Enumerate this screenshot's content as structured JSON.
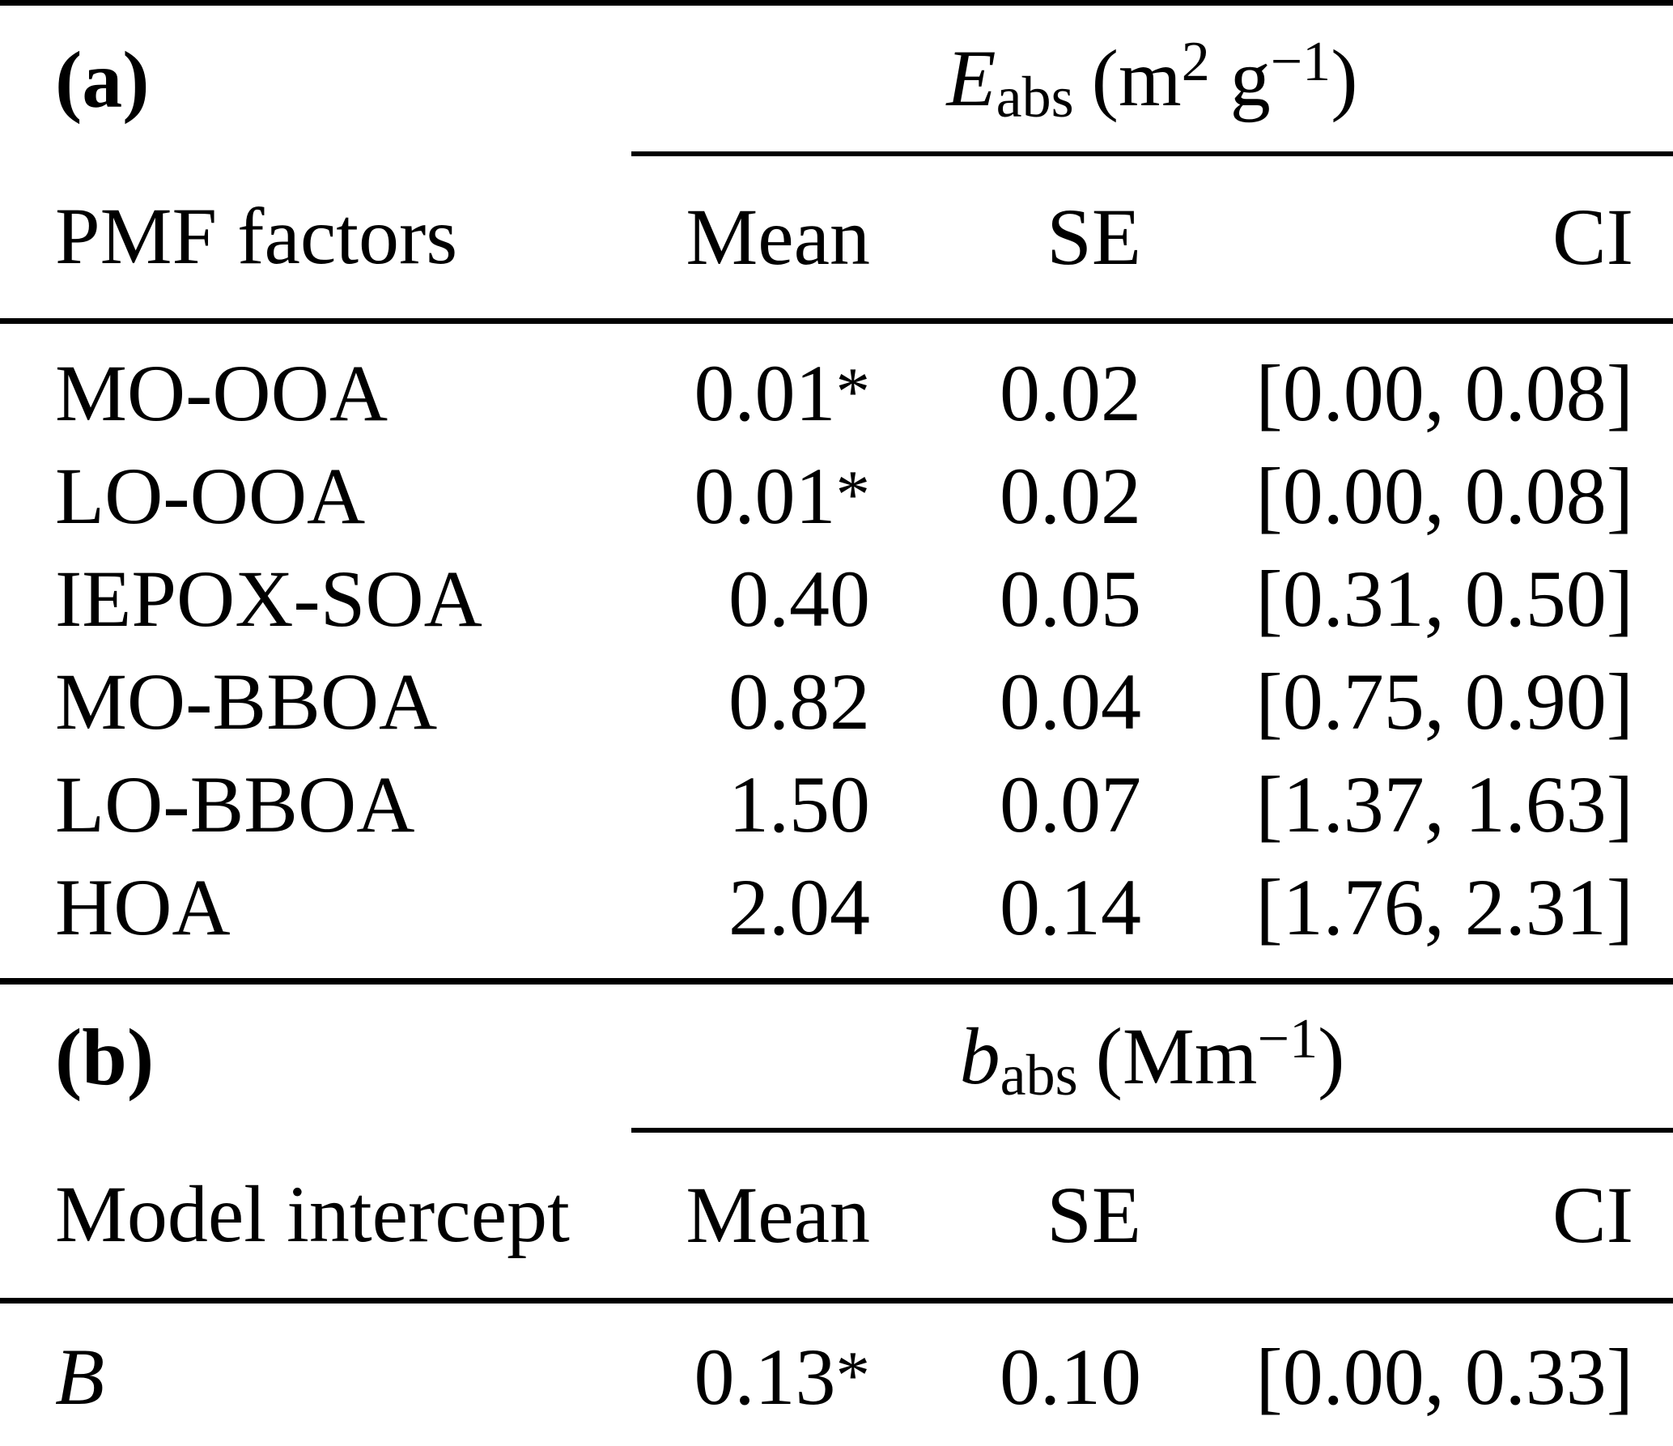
{
  "section_a": {
    "label": "(a)",
    "group_header": {
      "symbol": "E",
      "symbol_sub": "abs",
      "unit_prefix": "(m",
      "unit_sup1": "2",
      "unit_mid": " g",
      "unit_sup2": "−1",
      "unit_close": ")"
    },
    "columns": {
      "factor": "PMF factors",
      "mean": "Mean",
      "se": "SE",
      "ci": "CI"
    },
    "rows": [
      {
        "factor": "MO-OOA",
        "mean": "0.01",
        "star": "*",
        "se": "0.02",
        "ci": "[0.00, 0.08]"
      },
      {
        "factor": "LO-OOA",
        "mean": "0.01",
        "star": "*",
        "se": "0.02",
        "ci": "[0.00, 0.08]"
      },
      {
        "factor": "IEPOX-SOA",
        "mean": "0.40",
        "se": "0.05",
        "ci": "[0.31, 0.50]"
      },
      {
        "factor": "MO-BBOA",
        "mean": "0.82",
        "se": "0.04",
        "ci": "[0.75, 0.90]"
      },
      {
        "factor": "LO-BBOA",
        "mean": "1.50",
        "se": "0.07",
        "ci": "[1.37, 1.63]"
      },
      {
        "factor": "HOA",
        "mean": "2.04",
        "se": "0.14",
        "ci": "[1.76, 2.31]"
      }
    ]
  },
  "section_b": {
    "label": "(b)",
    "group_header": {
      "symbol": "b",
      "symbol_sub": "abs",
      "unit_prefix": "(Mm",
      "unit_sup1": "−1",
      "unit_close": ")"
    },
    "columns": {
      "factor": "Model intercept",
      "mean": "Mean",
      "se": "SE",
      "ci": "CI"
    },
    "rows": [
      {
        "factor": "B",
        "mean": "0.13",
        "star": "*",
        "se": "0.10",
        "ci": "[0.00, 0.33]"
      }
    ]
  }
}
